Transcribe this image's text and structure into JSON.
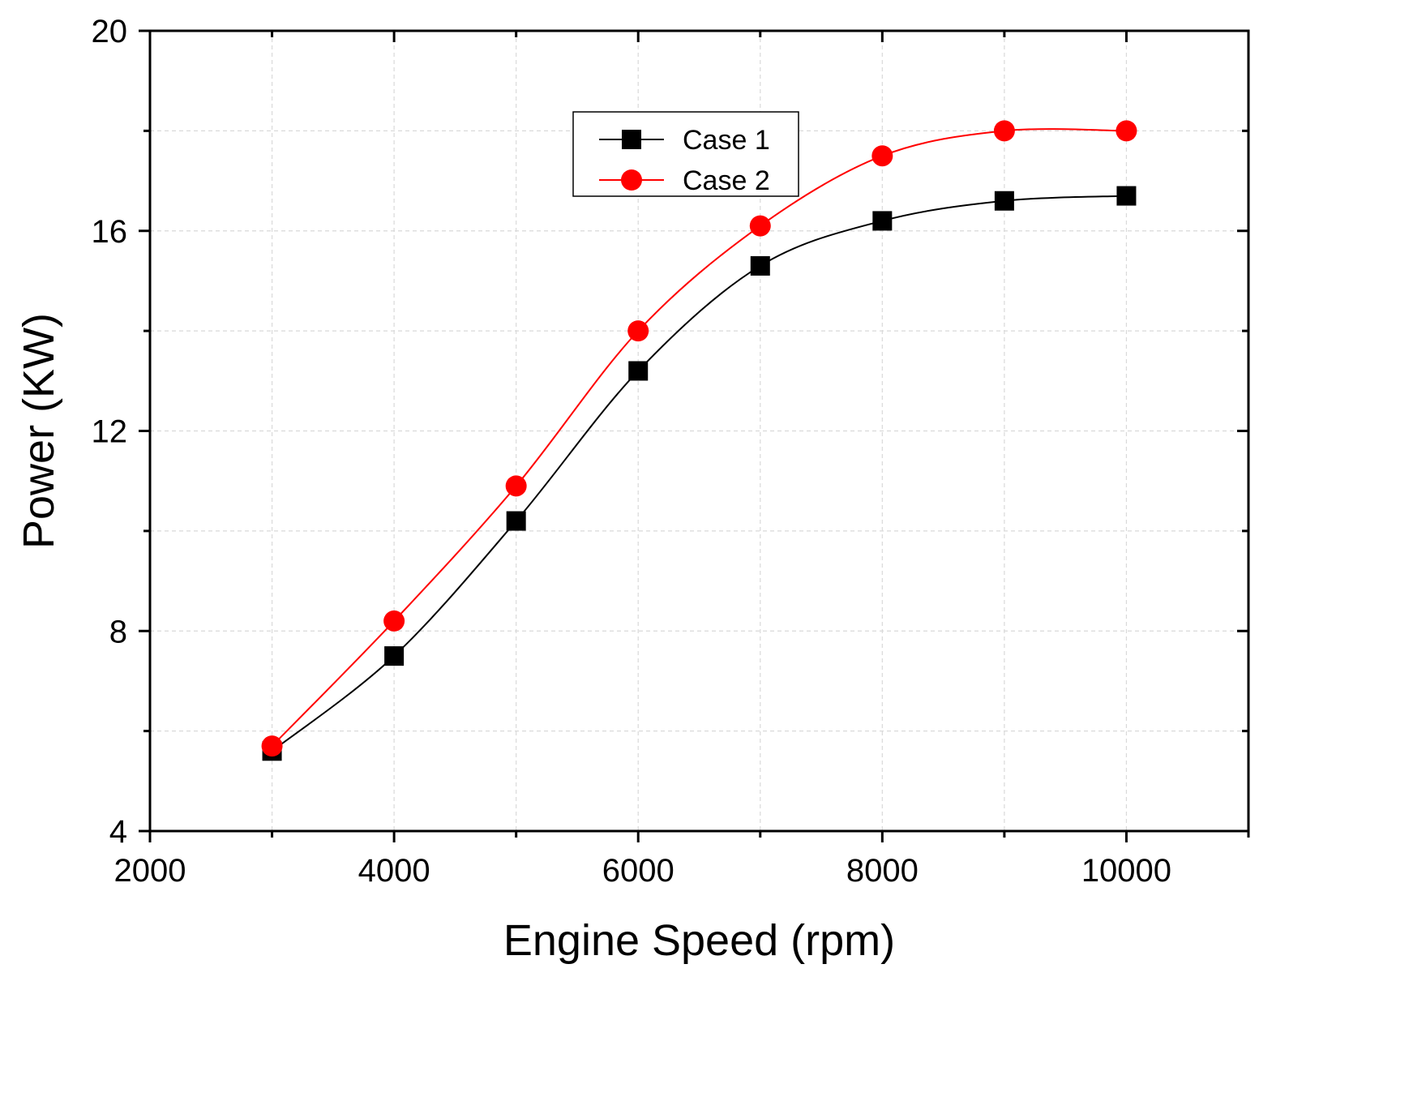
{
  "chart_data": {
    "type": "line",
    "title": "",
    "xlabel": "Engine Speed (rpm)",
    "ylabel": "Power (KW)",
    "xlim": [
      2000,
      11000
    ],
    "ylim": [
      4,
      20
    ],
    "x_ticks": [
      2000,
      4000,
      6000,
      8000,
      10000
    ],
    "y_ticks": [
      4,
      8,
      12,
      16,
      20
    ],
    "grid": true,
    "legend_position": "top-center",
    "x": [
      3000,
      4000,
      5000,
      6000,
      7000,
      8000,
      9000,
      10000
    ],
    "series": [
      {
        "name": "Case 1",
        "marker": "square",
        "color": "#000000",
        "values": [
          5.6,
          7.5,
          10.2,
          13.2,
          15.3,
          16.2,
          16.6,
          16.7
        ]
      },
      {
        "name": "Case 2",
        "marker": "circle",
        "color": "#ff0000",
        "values": [
          5.7,
          8.2,
          10.9,
          14.0,
          16.1,
          17.5,
          18.0,
          18.0
        ]
      }
    ]
  }
}
